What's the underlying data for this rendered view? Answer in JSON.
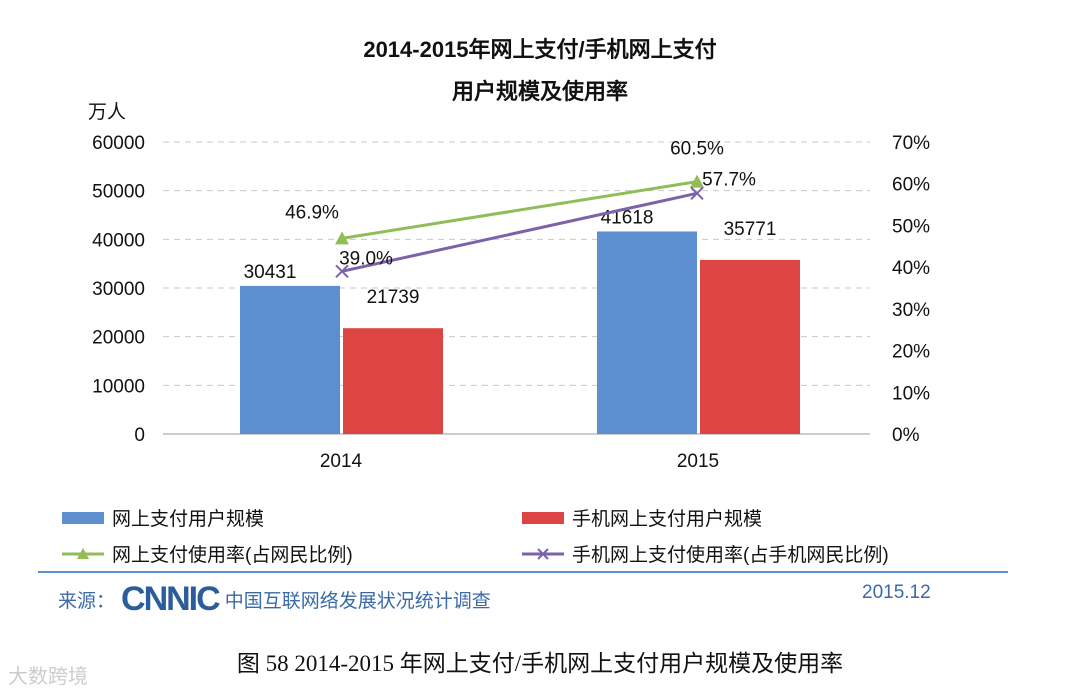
{
  "title_line1": "2014-2015年网上支付/手机网上支付",
  "title_line2": "用户规模及使用率",
  "caption": "图  58    2014-2015 年网上支付/手机网上支付用户规模及使用率",
  "source_label": "来源：",
  "source_logo": "CNNIC",
  "source_org": "中国互联网络发展状况统计调查",
  "date": "2015.12",
  "watermark": "CNNIC",
  "brand_watermark": "大数跨境",
  "chart_data": {
    "type": "bar+line",
    "categories": [
      "2014",
      "2015"
    ],
    "ylabel": "万人",
    "ylim": [
      0,
      60000
    ],
    "yticks": [
      "0",
      "10000",
      "20000",
      "30000",
      "40000",
      "50000",
      "60000"
    ],
    "y2lim": [
      0,
      70
    ],
    "y2ticks": [
      "0%",
      "10%",
      "20%",
      "30%",
      "40%",
      "50%",
      "60%",
      "70%"
    ],
    "grid": true,
    "legend_position": "bottom",
    "bar_series": [
      {
        "name": "网上支付用户规模",
        "values": [
          30431,
          41618
        ],
        "labels": [
          "30431",
          "41618"
        ],
        "color": "#5b8fd0"
      },
      {
        "name": "手机网上支付用户规模",
        "values": [
          21739,
          35771
        ],
        "labels": [
          "21739",
          "35771"
        ],
        "color": "#dc4541"
      }
    ],
    "line_series": [
      {
        "name": "网上支付使用率(占网民比例)",
        "values": [
          46.9,
          60.5
        ],
        "labels": [
          "46.9%",
          "60.5%"
        ],
        "color": "#91bd59",
        "marker": "triangle"
      },
      {
        "name": "手机网上支付使用率(占手机网民比例)",
        "values": [
          39.0,
          57.7
        ],
        "labels": [
          "39.0%",
          "57.7%"
        ],
        "color": "#7b62aa",
        "marker": "x"
      }
    ]
  }
}
